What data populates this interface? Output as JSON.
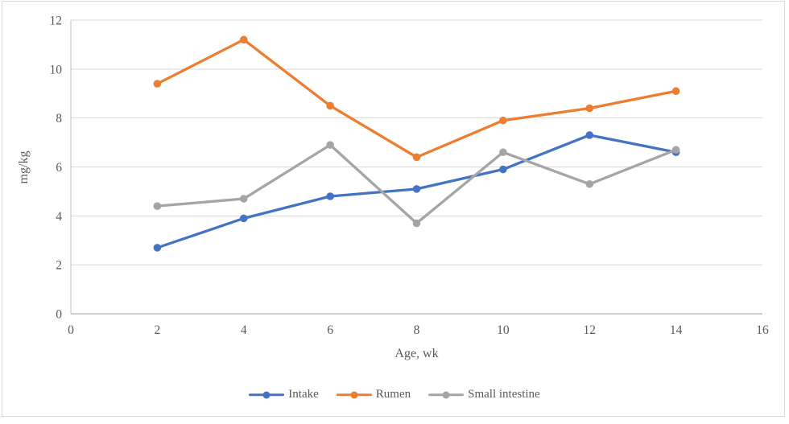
{
  "colors": {
    "grid": "#d9d9d9",
    "axis": "#bfbfbf",
    "text": "#595959",
    "frame_border": "#d9d9d9",
    "background": "#ffffff",
    "series_blue": "#4472C4",
    "series_orange": "#ED7D31",
    "series_gray": "#A5A5A5"
  },
  "chart_data": {
    "type": "line",
    "title": "",
    "xlabel": "Age, wk",
    "ylabel": "mg/kg",
    "x": [
      2,
      4,
      6,
      8,
      10,
      12,
      14
    ],
    "series": [
      {
        "name": "Intake",
        "color": "#4472C4",
        "values": [
          2.7,
          3.9,
          4.8,
          5.1,
          5.9,
          7.3,
          6.6
        ]
      },
      {
        "name": "Rumen",
        "color": "#ED7D31",
        "values": [
          9.4,
          11.2,
          8.5,
          6.4,
          7.9,
          8.4,
          9.1
        ]
      },
      {
        "name": "Small intestine",
        "color": "#A5A5A5",
        "values": [
          4.4,
          4.7,
          6.9,
          3.7,
          6.6,
          5.3,
          6.7
        ]
      }
    ],
    "xlim": [
      0,
      16
    ],
    "ylim": [
      0,
      12
    ],
    "xticks": [
      0,
      2,
      4,
      6,
      8,
      10,
      12,
      14,
      16
    ],
    "yticks": [
      0,
      2,
      4,
      6,
      8,
      10,
      12
    ],
    "grid": "horizontal",
    "legend_position": "bottom",
    "marker": "circle"
  }
}
